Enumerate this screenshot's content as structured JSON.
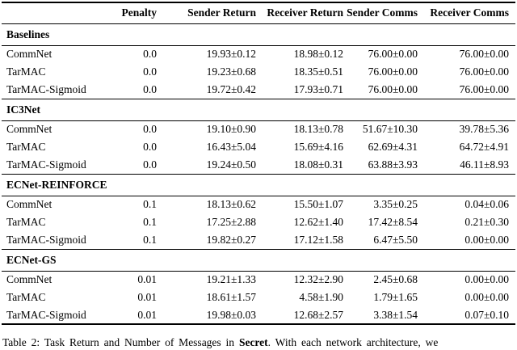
{
  "table": {
    "columns": [
      "",
      "Penalty",
      "Sender Return",
      "Receiver Return",
      "Sender Comms",
      "Receiver Comms"
    ],
    "sections": [
      {
        "name": "Baselines",
        "rows": [
          {
            "label": "CommNet",
            "values": [
              "0.0",
              "19.93±0.12",
              "18.98±0.12",
              "76.00±0.00",
              "76.00±0.00"
            ]
          },
          {
            "label": "TarMAC",
            "values": [
              "0.0",
              "19.23±0.68",
              "18.35±0.51",
              "76.00±0.00",
              "76.00±0.00"
            ]
          },
          {
            "label": "TarMAC-Sigmoid",
            "values": [
              "0.0",
              "19.72±0.42",
              "17.93±0.71",
              "76.00±0.00",
              "76.00±0.00"
            ]
          }
        ]
      },
      {
        "name": "IC3Net",
        "rows": [
          {
            "label": "CommNet",
            "values": [
              "0.0",
              "19.10±0.90",
              "18.13±0.78",
              "51.67±10.30",
              "39.78±5.36"
            ]
          },
          {
            "label": "TarMAC",
            "values": [
              "0.0",
              "16.43±5.04",
              "15.69±4.16",
              "62.69±4.31",
              "64.72±4.91"
            ]
          },
          {
            "label": "TarMAC-Sigmoid",
            "values": [
              "0.0",
              "19.24±0.50",
              "18.08±0.31",
              "63.88±3.93",
              "46.11±8.93"
            ]
          }
        ]
      },
      {
        "name": "ECNet-REINFORCE",
        "rows": [
          {
            "label": "CommNet",
            "values": [
              "0.1",
              "18.13±0.62",
              "15.50±1.07",
              "3.35±0.25",
              "0.04±0.06"
            ]
          },
          {
            "label": "TarMAC",
            "values": [
              "0.1",
              "17.25±2.88",
              "12.62±1.40",
              "17.42±8.54",
              "0.21±0.30"
            ]
          },
          {
            "label": "TarMAC-Sigmoid",
            "values": [
              "0.1",
              "19.82±0.27",
              "17.12±1.58",
              "6.47±5.50",
              "0.00±0.00"
            ]
          }
        ]
      },
      {
        "name": "ECNet-GS",
        "rows": [
          {
            "label": "CommNet",
            "values": [
              "0.01",
              "19.21±1.33",
              "12.32±2.90",
              "2.45±0.68",
              "0.00±0.00"
            ]
          },
          {
            "label": "TarMAC",
            "values": [
              "0.01",
              "18.61±1.57",
              "4.58±1.90",
              "1.79±1.65",
              "0.00±0.00"
            ]
          },
          {
            "label": "TarMAC-Sigmoid",
            "values": [
              "0.01",
              "19.98±0.03",
              "12.68±2.57",
              "3.38±1.54",
              "0.07±0.10"
            ]
          }
        ]
      }
    ]
  },
  "caption": {
    "prefix": "Table 2: Task Return and Number of Messages in ",
    "highlight": "Secret",
    "suffix": ". With each network architecture, we"
  }
}
